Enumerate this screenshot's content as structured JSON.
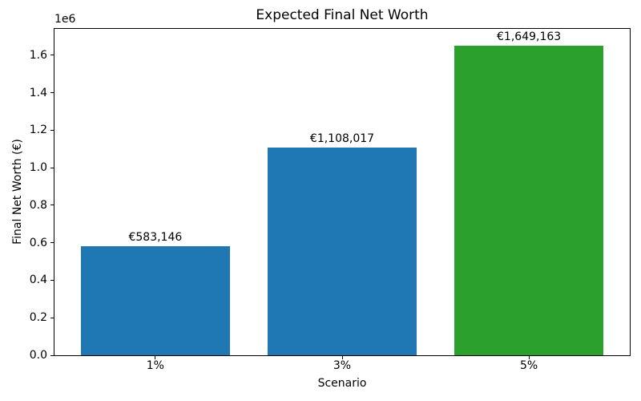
{
  "chart_data": {
    "type": "bar",
    "title": "Expected Final Net Worth",
    "xlabel": "Scenario",
    "ylabel": "Final Net Worth (€)",
    "y_offset_label": "1e6",
    "categories": [
      "1%",
      "3%",
      "5%"
    ],
    "values": [
      583146,
      1108017,
      1649163
    ],
    "bar_labels": [
      "€583,146",
      "€1,108,017",
      "€1,649,163"
    ],
    "bar_colors": [
      "#1f77b4",
      "#1f77b4",
      "#2ca02c"
    ],
    "ylim": [
      0,
      1740000
    ],
    "yticks": [
      {
        "value": 0,
        "label": "0.0"
      },
      {
        "value": 200000,
        "label": "0.2"
      },
      {
        "value": 400000,
        "label": "0.4"
      },
      {
        "value": 600000,
        "label": "0.6"
      },
      {
        "value": 800000,
        "label": "0.8"
      },
      {
        "value": 1000000,
        "label": "1.0"
      },
      {
        "value": 1200000,
        "label": "1.2"
      },
      {
        "value": 1400000,
        "label": "1.4"
      },
      {
        "value": 1600000,
        "label": "1.6"
      }
    ],
    "bar_width_fraction": 0.8,
    "x_margin": 0.54,
    "grid": false,
    "legend": null,
    "colors": {
      "axis": "#000000",
      "text": "#000000",
      "background": "#ffffff"
    }
  }
}
